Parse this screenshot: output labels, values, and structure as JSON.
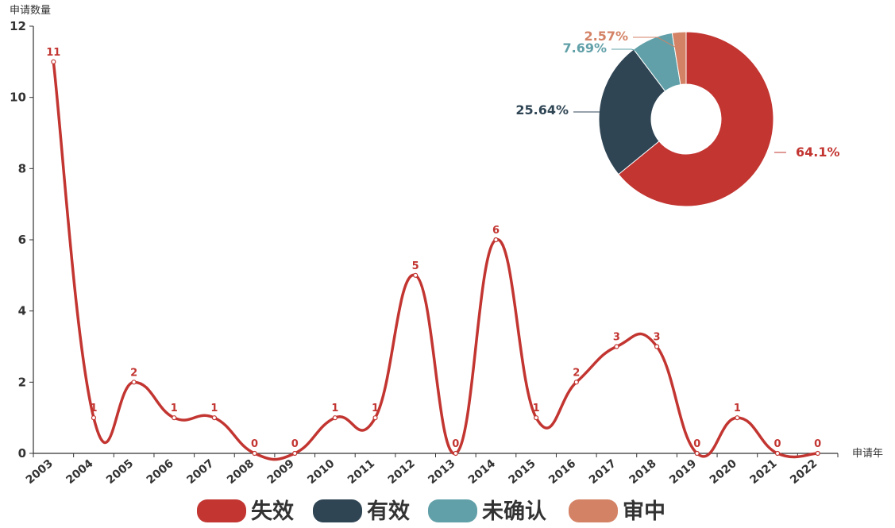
{
  "chart_data": [
    {
      "type": "line",
      "smooth": true,
      "xlabel": "申请年",
      "ylabel": "申请数量",
      "x": [
        "2003",
        "2004",
        "2005",
        "2006",
        "2007",
        "2008",
        "2009",
        "2010",
        "2011",
        "2012",
        "2013",
        "2014",
        "2015",
        "2016",
        "2017",
        "2018",
        "2019",
        "2020",
        "2021",
        "2022"
      ],
      "values": [
        11,
        1,
        2,
        1,
        1,
        0,
        0,
        1,
        1,
        5,
        0,
        6,
        1,
        2,
        3,
        3,
        0,
        1,
        0,
        0
      ],
      "yticks": [
        0,
        2,
        4,
        6,
        8,
        10,
        12
      ],
      "ylim": [
        0,
        12
      ],
      "color": "#c23531"
    },
    {
      "type": "pie",
      "donut": true,
      "slices": [
        {
          "name": "失效",
          "value": 64.1,
          "label": "64.1%",
          "color": "#c23531"
        },
        {
          "name": "有效",
          "value": 25.64,
          "label": "25.64%",
          "color": "#2f4554"
        },
        {
          "name": "未确认",
          "value": 7.69,
          "label": "7.69%",
          "color": "#61a0a8"
        },
        {
          "name": "审中",
          "value": 2.57,
          "label": "2.57%",
          "color": "#d48265"
        }
      ]
    }
  ],
  "legend": [
    {
      "label": "失效",
      "color": "#c23531"
    },
    {
      "label": "有效",
      "color": "#2f4554"
    },
    {
      "label": "未确认",
      "color": "#61a0a8"
    },
    {
      "label": "审中",
      "color": "#d48265"
    }
  ]
}
